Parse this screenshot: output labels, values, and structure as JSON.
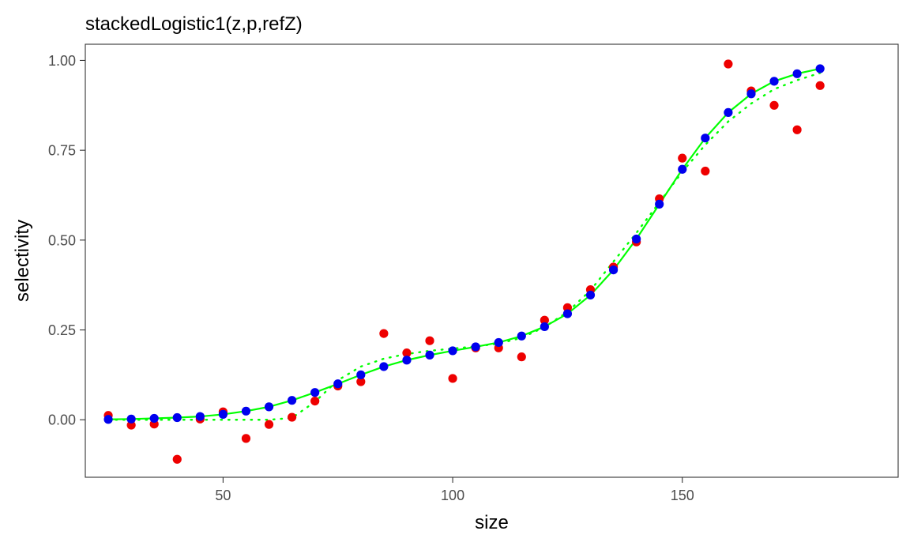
{
  "chart_data": {
    "type": "scatter",
    "title": "stackedLogistic1(z,p,refZ)",
    "xlabel": "size",
    "ylabel": "selectivity",
    "xlim": [
      20,
      197
    ],
    "ylim": [
      -0.16,
      1.045
    ],
    "x_ticks": [
      50,
      100,
      150
    ],
    "x_tick_labels": [
      "50",
      "100",
      "150"
    ],
    "y_ticks": [
      0.0,
      0.25,
      0.5,
      0.75,
      1.0
    ],
    "y_tick_labels": [
      "0.00",
      "0.25",
      "0.50",
      "0.75",
      "1.00"
    ],
    "grid": false,
    "legend": "none",
    "colors": {
      "observed": "#ee0000",
      "model": "#0000ee",
      "true_curve": "#00ff00",
      "fit_curve": "#00ff00"
    },
    "x": [
      25,
      30,
      35,
      40,
      45,
      50,
      55,
      60,
      65,
      70,
      75,
      80,
      85,
      90,
      95,
      100,
      105,
      110,
      115,
      120,
      125,
      130,
      135,
      140,
      145,
      150,
      155,
      160,
      165,
      170,
      175,
      180
    ],
    "series": [
      {
        "style": "points",
        "color": "#ee0000",
        "values": [
          0.012,
          -0.015,
          -0.012,
          -0.11,
          0.002,
          0.022,
          -0.052,
          -0.013,
          0.007,
          0.052,
          0.094,
          0.106,
          0.24,
          0.186,
          0.22,
          0.115,
          0.2,
          0.2,
          0.175,
          0.277,
          0.312,
          0.362,
          0.425,
          0.495,
          0.615,
          0.728,
          0.692,
          0.99,
          0.915,
          0.875,
          0.807,
          0.93
        ]
      },
      {
        "style": "points",
        "color": "#0000ee",
        "values": [
          0.001,
          0.002,
          0.004,
          0.006,
          0.009,
          0.015,
          0.024,
          0.036,
          0.054,
          0.076,
          0.1,
          0.125,
          0.148,
          0.166,
          0.18,
          0.192,
          0.203,
          0.215,
          0.233,
          0.259,
          0.295,
          0.347,
          0.417,
          0.503,
          0.6,
          0.697,
          0.784,
          0.855,
          0.907,
          0.942,
          0.963,
          0.977
        ]
      },
      {
        "style": "solid-line",
        "color": "#00ff00",
        "values": [
          0.001,
          0.002,
          0.004,
          0.006,
          0.009,
          0.015,
          0.024,
          0.036,
          0.054,
          0.076,
          0.1,
          0.125,
          0.148,
          0.166,
          0.18,
          0.192,
          0.203,
          0.215,
          0.233,
          0.259,
          0.295,
          0.347,
          0.417,
          0.503,
          0.6,
          0.697,
          0.784,
          0.855,
          0.907,
          0.942,
          0.963,
          0.977
        ]
      },
      {
        "style": "dotted-line",
        "color": "#00ff00",
        "values": [
          0.0,
          0.0,
          0.0,
          0.0,
          0.0,
          0.0,
          0.0,
          0.0,
          0.005,
          0.05,
          0.11,
          0.148,
          0.17,
          0.183,
          0.192,
          0.198,
          0.204,
          0.212,
          0.228,
          0.258,
          0.3,
          0.36,
          0.44,
          0.52,
          0.605,
          0.69,
          0.765,
          0.83,
          0.88,
          0.92,
          0.945,
          0.965
        ]
      }
    ]
  }
}
